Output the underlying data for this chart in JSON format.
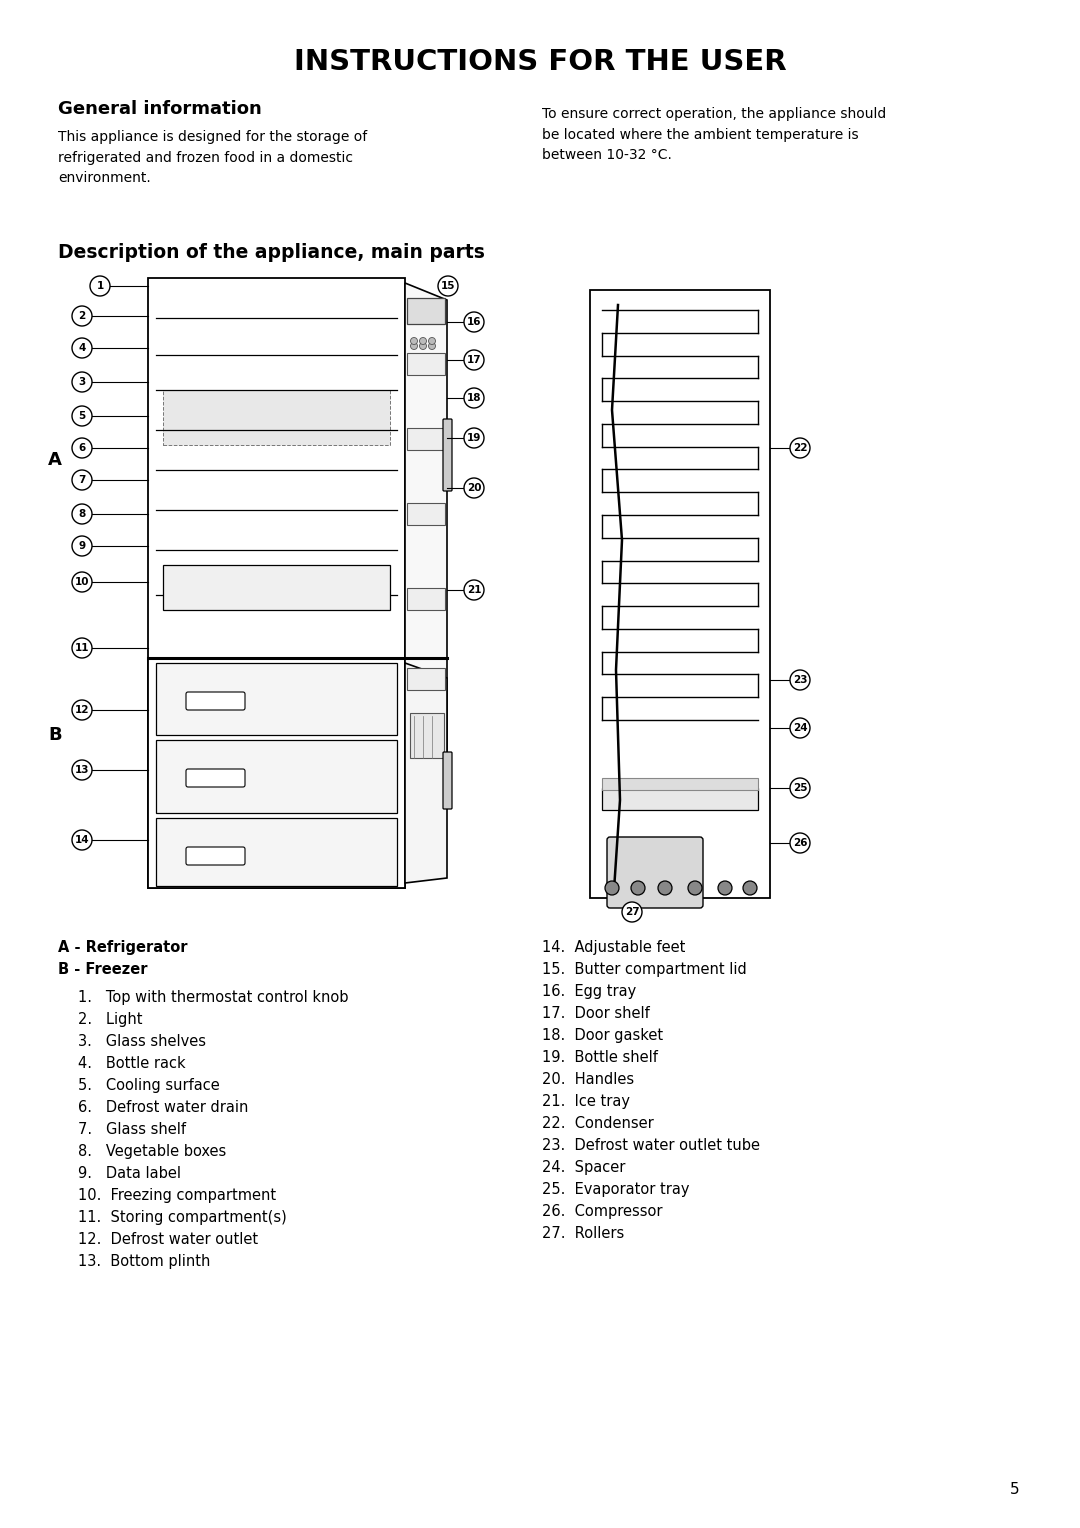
{
  "title": "INSTRUCTIONS FOR THE USER",
  "section1_title": "General information",
  "section1_left": "This appliance is designed for the storage of\nrefrigerated and frozen food in a domestic\nenvironment.",
  "section1_right": "To ensure correct operation, the appliance should\nbe located where the ambient temperature is\nbetween 10-32 °C.",
  "section2_title": "Description of the appliance, main parts",
  "label_A": "A - Refrigerator",
  "label_B": "B - Freezer",
  "items_left": [
    "1.   Top with thermostat control knob",
    "2.   Light",
    "3.   Glass shelves",
    "4.   Bottle rack",
    "5.   Cooling surface",
    "6.   Defrost water drain",
    "7.   Glass shelf",
    "8.   Vegetable boxes",
    "9.   Data label",
    "10.  Freezing compartment",
    "11.  Storing compartment(s)",
    "12.  Defrost water outlet",
    "13.  Bottom plinth"
  ],
  "items_right": [
    "14.  Adjustable feet",
    "15.  Butter compartment lid",
    "16.  Egg tray",
    "17.  Door shelf",
    "18.  Door gasket",
    "19.  Bottle shelf",
    "20.  Handles",
    "21.  Ice tray",
    "22.  Condenser",
    "23.  Defrost water outlet tube",
    "24.  Spacer",
    "25.  Evaporator tray",
    "26.  Compressor",
    "27.  Rollers"
  ],
  "page_number": "5",
  "bg_color": "#ffffff"
}
